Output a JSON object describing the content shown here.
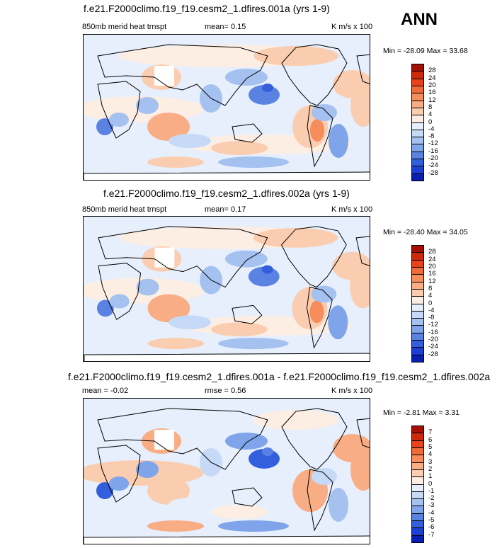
{
  "season": "ANN",
  "panels": [
    {
      "title": "f.e21.F2000climo.f19_f19.cesm2_1.dfires.001a (yrs 1-9)",
      "variable": "850mb merid heat trnspt",
      "mean": "mean=   0.15",
      "units": "K m/s x 100",
      "minmax": "Min = -28.09 Max =  33.68",
      "levels": [
        "28",
        "24",
        "20",
        "16",
        "12",
        "8",
        "4",
        "0",
        "-4",
        "-8",
        "-12",
        "-16",
        "-20",
        "-24",
        "-28"
      ]
    },
    {
      "title": "f.e21.F2000climo.f19_f19.cesm2_1.dfires.002a (yrs 1-9)",
      "variable": "850mb merid heat trnspt",
      "mean": "mean=   0.17",
      "units": "K m/s x 100",
      "minmax": "Min = -28.40 Max =  34.05",
      "levels": [
        "28",
        "24",
        "20",
        "16",
        "12",
        "8",
        "4",
        "0",
        "-4",
        "-8",
        "-12",
        "-16",
        "-20",
        "-24",
        "-28"
      ]
    },
    {
      "title": "f.e21.F2000climo.f19_f19.cesm2_1.dfires.001a - f.e21.F2000climo.f19_f19.cesm2_1.dfires.002a",
      "mean": "mean = -0.02",
      "rmse": "rmse =   0.56",
      "units": "K m/s x 100",
      "minmax": "Min =  -2.81 Max =   3.31",
      "levels": [
        "7",
        "6",
        "5",
        "4",
        "3",
        "2",
        "1",
        "0",
        "-1",
        "-2",
        "-3",
        "-4",
        "-5",
        "-6",
        "-7"
      ]
    }
  ],
  "colors": {
    "scale": [
      "#a50f05",
      "#cc2a0c",
      "#e8431a",
      "#f16a3a",
      "#f58d5c",
      "#f8ad85",
      "#fbcdb0",
      "#fdeee4",
      "#e6effb",
      "#c6d9f6",
      "#a4c1f0",
      "#7fa4ea",
      "#5a82e3",
      "#345fdc",
      "#1f3fd3",
      "#0a1fb0"
    ]
  }
}
